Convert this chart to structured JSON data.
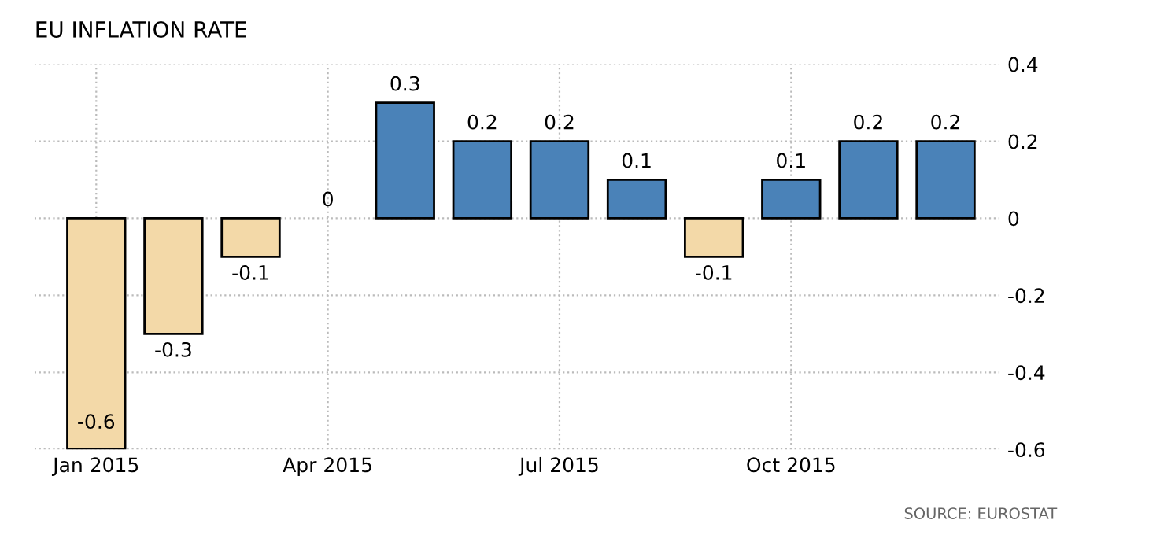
{
  "chart_data": {
    "type": "bar",
    "title": "EU INFLATION RATE",
    "categories": [
      "Jan 2015",
      null,
      null,
      "Apr 2015",
      null,
      null,
      "Jul 2015",
      null,
      null,
      "Oct 2015",
      null,
      null
    ],
    "values": [
      -0.6,
      -0.3,
      -0.1,
      0,
      0.3,
      0.2,
      0.2,
      0.1,
      -0.1,
      0.1,
      0.2,
      0.2
    ],
    "colors": [
      "#f3d9a8",
      "#f3d9a8",
      "#f3d9a8",
      "#f3d9a8",
      "#4a82b8",
      "#4a82b8",
      "#4a82b8",
      "#4a82b8",
      "#f3d9a8",
      "#4a82b8",
      "#4a82b8",
      "#4a82b8"
    ],
    "ylim": [
      -0.6,
      0.4
    ],
    "yticks": [
      -0.6,
      -0.4,
      -0.2,
      0,
      0.2,
      0.4
    ],
    "grid": true,
    "data_labels": true,
    "annotations": [
      "SOURCE: EUROSTAT"
    ]
  }
}
